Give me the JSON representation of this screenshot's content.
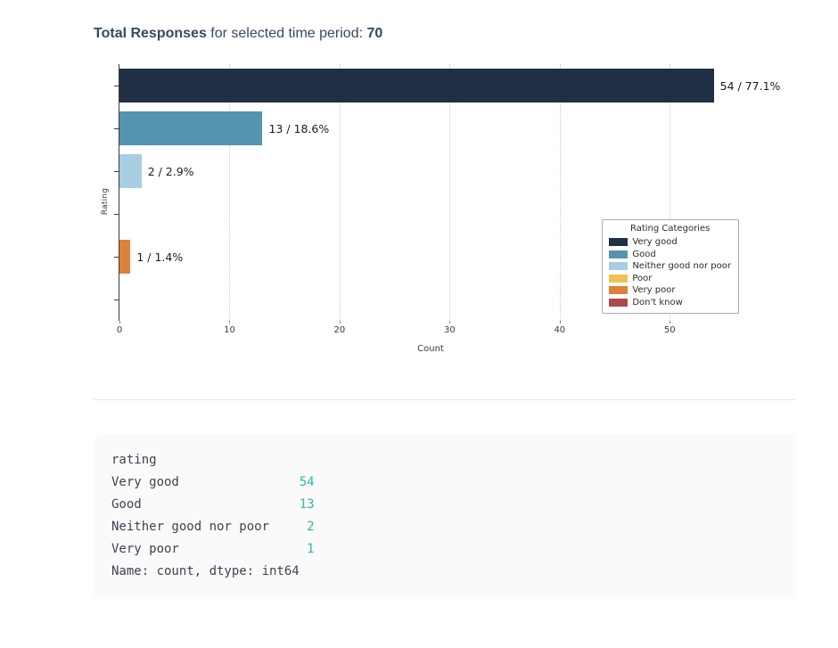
{
  "header": {
    "title_bold": "Total Responses",
    "title_middle": " for selected time period: ",
    "title_count": "70"
  },
  "chart_data": {
    "type": "bar",
    "orientation": "horizontal",
    "categories": [
      "Very good",
      "Good",
      "Neither good nor poor",
      "Poor",
      "Very poor",
      "Don't know"
    ],
    "values": [
      54,
      13,
      2,
      0,
      1,
      0
    ],
    "bar_labels": [
      "54 / 77.1%",
      "13 / 18.6%",
      "2 / 2.9%",
      "",
      "1 / 1.4%",
      ""
    ],
    "colors": [
      "#1f3044",
      "#5593ae",
      "#a9cde2",
      "#f1c24f",
      "#dd823a",
      "#ad4a47"
    ],
    "total": 70,
    "title": "",
    "xlabel": "Count",
    "ylabel": "Rating",
    "xticks": [
      0,
      10,
      20,
      30,
      40,
      50
    ],
    "xlim": [
      0,
      56.7
    ],
    "grid": "vertical-dotted",
    "legend": {
      "title": "Rating Categories",
      "entries": [
        "Very good",
        "Good",
        "Neither good nor poor",
        "Poor",
        "Very poor",
        "Don't know"
      ],
      "position": "lower right"
    }
  },
  "code_output": {
    "lines": [
      {
        "text": "rating",
        "value": ""
      },
      {
        "text": "Very good",
        "value": "54"
      },
      {
        "text": "Good",
        "value": "13"
      },
      {
        "text": "Neither good nor poor",
        "value": "2"
      },
      {
        "text": "Very poor",
        "value": "1"
      },
      {
        "text": "Name: count, dtype: int64",
        "value": ""
      }
    ]
  },
  "colors": {
    "title_text": "#344a63",
    "axis_text": "#3b3b3b",
    "bar_label_text": "#1c1c1c",
    "accent_number": "#2cb8a6",
    "code_text": "#3f4352",
    "code_bg": "#fafafa",
    "divider": "#e6e6e6"
  }
}
